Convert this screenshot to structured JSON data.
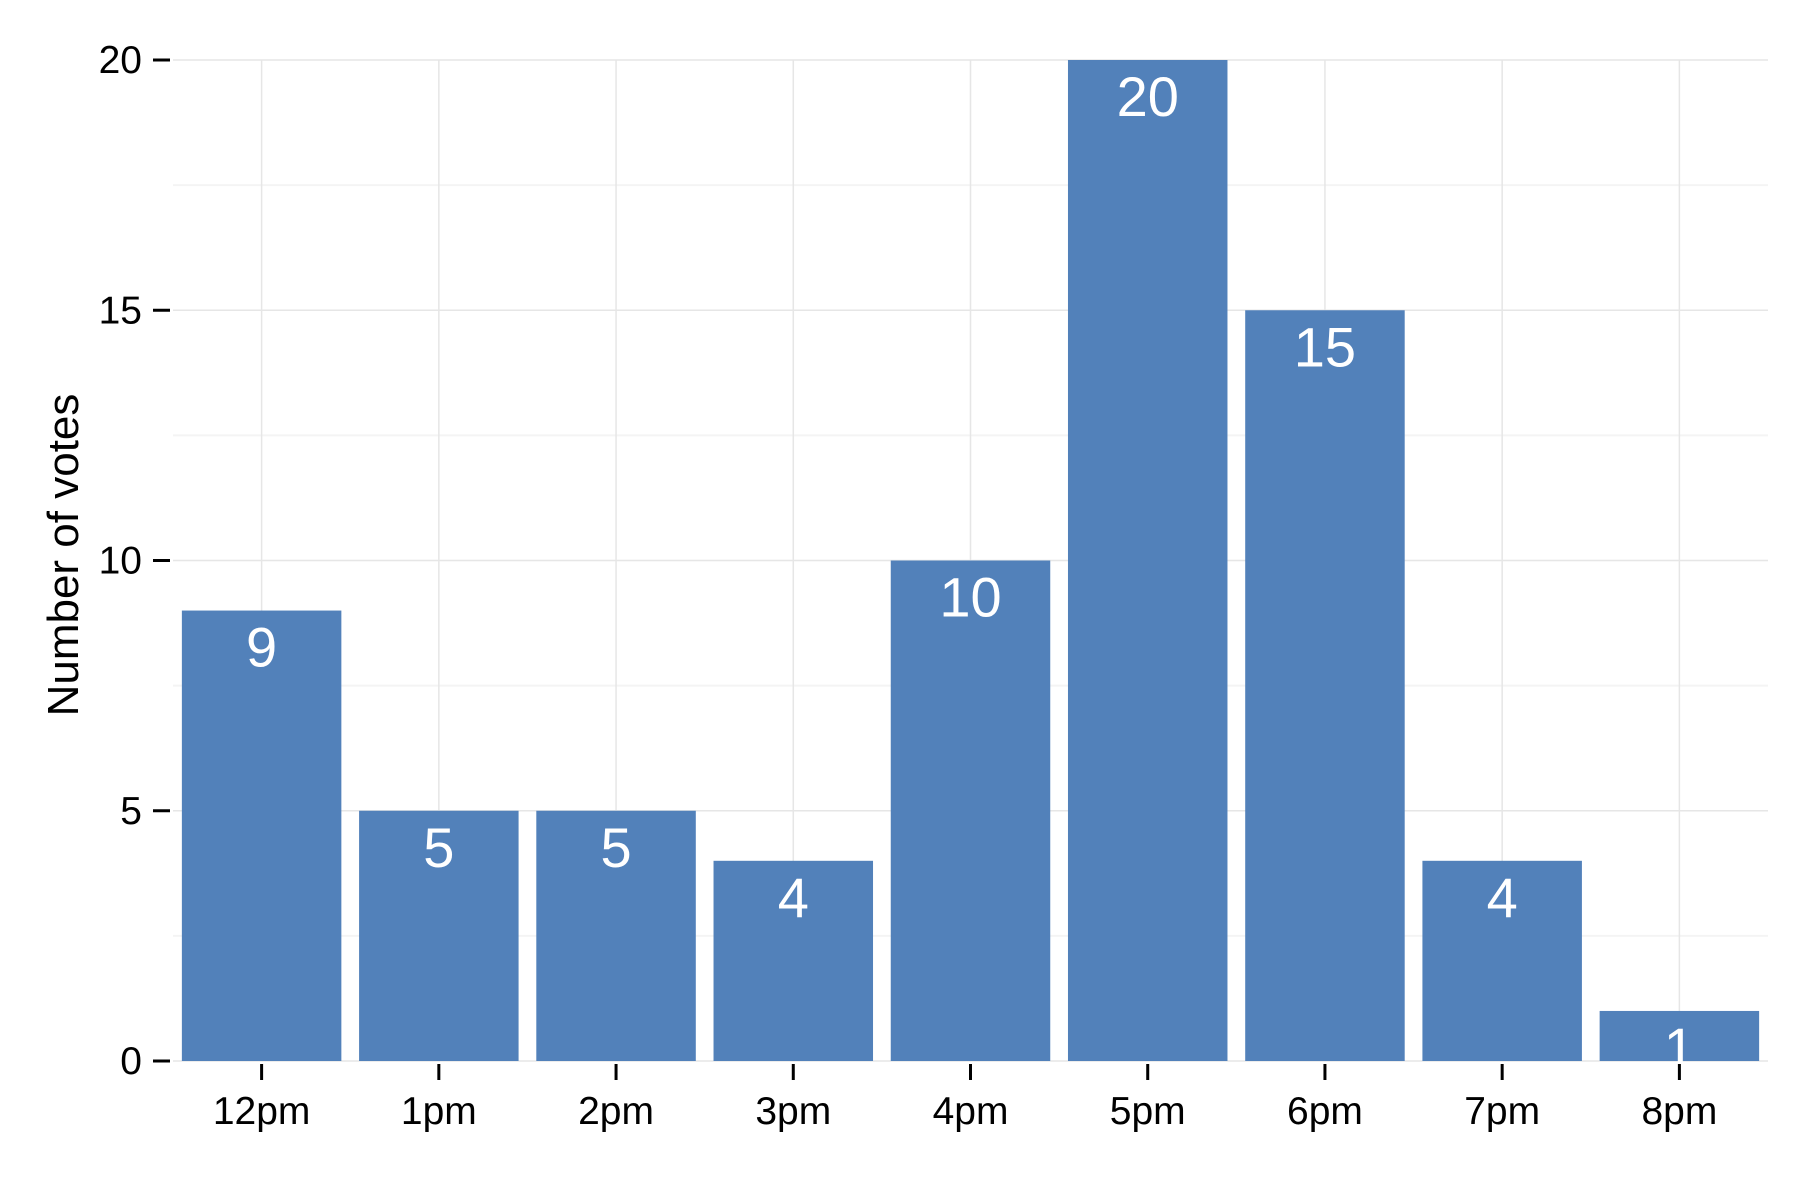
{
  "chart_data": {
    "type": "bar",
    "categories": [
      "12pm",
      "1pm",
      "2pm",
      "3pm",
      "4pm",
      "5pm",
      "6pm",
      "7pm",
      "8pm"
    ],
    "values": [
      9,
      5,
      5,
      4,
      10,
      20,
      15,
      4,
      1
    ],
    "title": "",
    "xlabel": "",
    "ylabel": "Number of votes",
    "ylim": [
      0,
      20
    ],
    "yticks": [
      0,
      5,
      10,
      15,
      20
    ],
    "grid": true,
    "legend": "none",
    "data_labels": true,
    "colors": {
      "bar": "#5281ba",
      "data_label": "#ffffff",
      "grid_major": "#e6e6e6",
      "grid_minor": "#f4f4f4",
      "axis_tick": "#000000"
    }
  }
}
